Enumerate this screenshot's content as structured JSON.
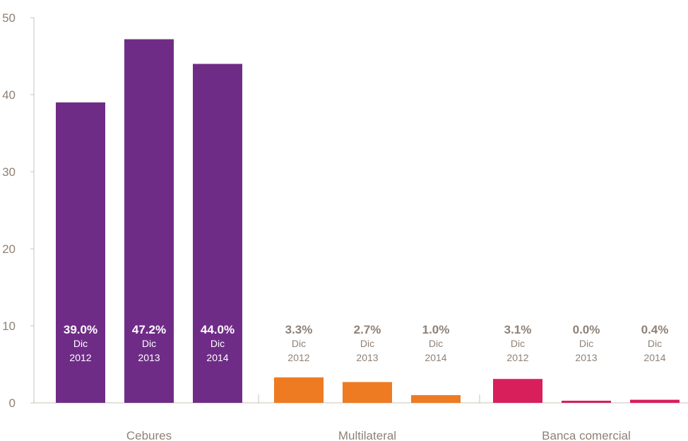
{
  "chart_data": {
    "type": "bar",
    "ylim": [
      0,
      50
    ],
    "yticks": [
      0,
      10,
      20,
      30,
      40,
      50
    ],
    "grid": false,
    "groups": [
      {
        "category": "Cebures",
        "color": "#6f2c87",
        "bars": [
          {
            "value": 39.0,
            "label": "39.0%",
            "period": "Dic",
            "year": "2012"
          },
          {
            "value": 47.2,
            "label": "47.2%",
            "period": "Dic",
            "year": "2013"
          },
          {
            "value": 44.0,
            "label": "44.0%",
            "period": "Dic",
            "year": "2014"
          }
        ]
      },
      {
        "category": "Multilateral",
        "color": "#ee7a22",
        "bars": [
          {
            "value": 3.3,
            "label": "3.3%",
            "period": "Dic",
            "year": "2012"
          },
          {
            "value": 2.7,
            "label": "2.7%",
            "period": "Dic",
            "year": "2013"
          },
          {
            "value": 1.0,
            "label": "1.0%",
            "period": "Dic",
            "year": "2014"
          }
        ]
      },
      {
        "category": "Banca comercial",
        "color": "#d81f5c",
        "bars": [
          {
            "value": 3.1,
            "label": "3.1%",
            "period": "Dic",
            "year": "2012"
          },
          {
            "value": 0.0,
            "label": "0.0%",
            "period": "Dic",
            "year": "2013"
          },
          {
            "value": 0.4,
            "label": "0.4%",
            "period": "Dic",
            "year": "2014"
          }
        ]
      }
    ]
  },
  "colors": {
    "axis": "#c8c0b8",
    "tick_text": "#8f8176",
    "inside_label": "#ffffff",
    "outside_label": "#8f8176"
  }
}
